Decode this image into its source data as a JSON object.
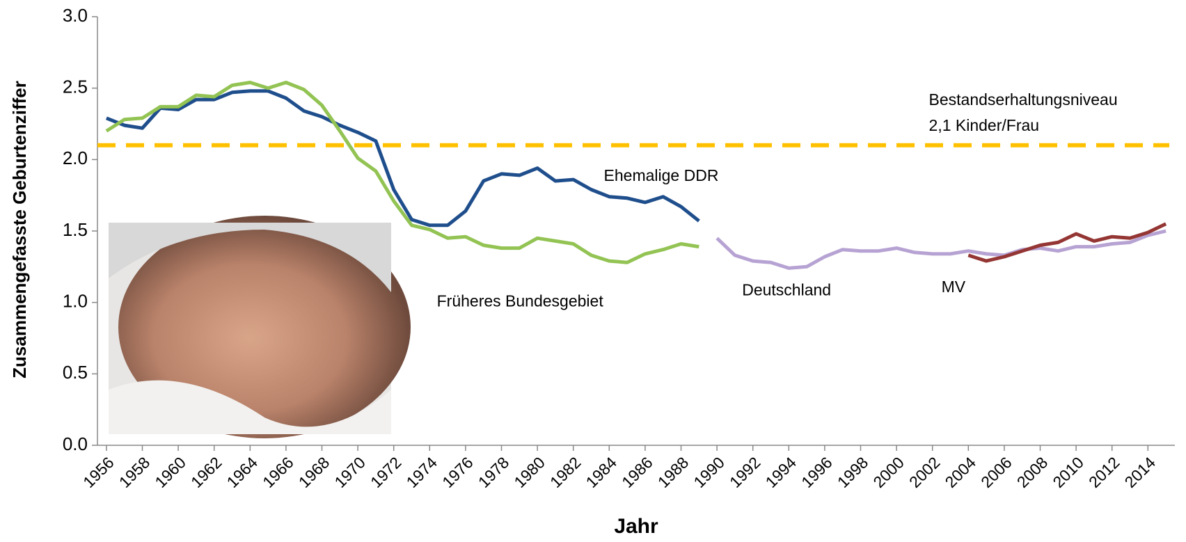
{
  "chart_data": {
    "type": "line",
    "x_label": "Jahr",
    "y_label": "Zusammengefasste Geburtenziffer",
    "x": [
      1956,
      1957,
      1958,
      1959,
      1960,
      1961,
      1962,
      1963,
      1964,
      1965,
      1966,
      1967,
      1968,
      1969,
      1970,
      1971,
      1972,
      1973,
      1974,
      1975,
      1976,
      1977,
      1978,
      1979,
      1980,
      1981,
      1982,
      1983,
      1984,
      1985,
      1986,
      1987,
      1988,
      1989,
      1990,
      1991,
      1992,
      1993,
      1994,
      1995,
      1996,
      1997,
      1998,
      1999,
      2000,
      2001,
      2002,
      2003,
      2004,
      2005,
      2006,
      2007,
      2008,
      2009,
      2010,
      2011,
      2012,
      2013,
      2014,
      2015
    ],
    "xlim": [
      1955.5,
      2015.5
    ],
    "xticks": [
      1956,
      1958,
      1960,
      1962,
      1964,
      1966,
      1968,
      1970,
      1972,
      1974,
      1976,
      1978,
      1980,
      1982,
      1984,
      1986,
      1988,
      1990,
      1992,
      1994,
      1996,
      1998,
      2000,
      2002,
      2004,
      2006,
      2008,
      2010,
      2012,
      2014
    ],
    "ylim": [
      0,
      3
    ],
    "yticks": [
      {
        "value": 0,
        "label": "0.0"
      },
      0.5,
      {
        "value": 1,
        "label": "1.0"
      },
      1.5,
      {
        "value": 2,
        "label": "2.0"
      },
      2.5,
      {
        "value": 3,
        "label": "3.0"
      }
    ],
    "series": [
      {
        "name": "Ehemalige DDR",
        "color": "#1f4e8c",
        "values": [
          2.29,
          2.24,
          2.22,
          2.36,
          2.35,
          2.42,
          2.42,
          2.47,
          2.48,
          2.48,
          2.43,
          2.34,
          2.3,
          2.24,
          2.19,
          2.13,
          1.79,
          1.58,
          1.54,
          1.54,
          1.64,
          1.85,
          1.9,
          1.89,
          1.94,
          1.85,
          1.86,
          1.79,
          1.74,
          1.73,
          1.7,
          1.74,
          1.67,
          1.57,
          null,
          null,
          null,
          null,
          null,
          null,
          null,
          null,
          null,
          null,
          null,
          null,
          null,
          null,
          null,
          null,
          null,
          null,
          null,
          null,
          null,
          null,
          null,
          null,
          null,
          null
        ]
      },
      {
        "name": "Früheres Bundesgebiet",
        "color": "#92c353",
        "values": [
          2.2,
          2.28,
          2.29,
          2.37,
          2.37,
          2.45,
          2.44,
          2.52,
          2.54,
          2.5,
          2.54,
          2.49,
          2.38,
          2.2,
          2.01,
          1.92,
          1.71,
          1.54,
          1.51,
          1.45,
          1.46,
          1.4,
          1.38,
          1.38,
          1.45,
          1.43,
          1.41,
          1.33,
          1.29,
          1.28,
          1.34,
          1.37,
          1.41,
          1.39,
          null,
          null,
          null,
          null,
          null,
          null,
          null,
          null,
          null,
          null,
          null,
          null,
          null,
          null,
          null,
          null,
          null,
          null,
          null,
          null,
          null,
          null,
          null,
          null,
          null,
          null
        ]
      },
      {
        "name": "Deutschland",
        "color": "#b7a3d3",
        "values": [
          null,
          null,
          null,
          null,
          null,
          null,
          null,
          null,
          null,
          null,
          null,
          null,
          null,
          null,
          null,
          null,
          null,
          null,
          null,
          null,
          null,
          null,
          null,
          null,
          null,
          null,
          null,
          null,
          null,
          null,
          null,
          null,
          null,
          null,
          1.45,
          1.33,
          1.29,
          1.28,
          1.24,
          1.25,
          1.32,
          1.37,
          1.36,
          1.36,
          1.38,
          1.35,
          1.34,
          1.34,
          1.36,
          1.34,
          1.33,
          1.37,
          1.38,
          1.36,
          1.39,
          1.39,
          1.41,
          1.42,
          1.47,
          1.5
        ]
      },
      {
        "name": "MV",
        "color": "#943634",
        "values": [
          null,
          null,
          null,
          null,
          null,
          null,
          null,
          null,
          null,
          null,
          null,
          null,
          null,
          null,
          null,
          null,
          null,
          null,
          null,
          null,
          null,
          null,
          null,
          null,
          null,
          null,
          null,
          null,
          null,
          null,
          null,
          null,
          null,
          null,
          null,
          null,
          null,
          null,
          null,
          null,
          null,
          null,
          null,
          null,
          null,
          null,
          null,
          null,
          1.33,
          1.29,
          1.32,
          1.36,
          1.4,
          1.42,
          1.48,
          1.43,
          1.46,
          1.45,
          1.49,
          1.55
        ]
      }
    ],
    "reference_line": {
      "value": 2.1,
      "color": "#ffc000"
    },
    "annotations": [
      "Bestandserhaltungsniveau",
      "2,1 Kinder/Frau"
    ]
  }
}
